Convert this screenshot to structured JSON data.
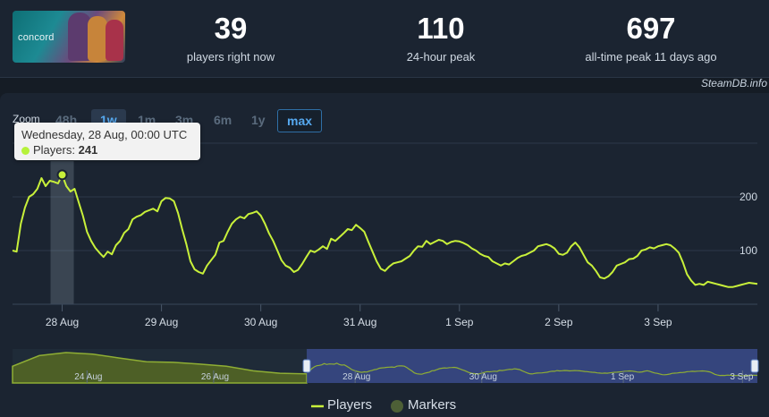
{
  "header": {
    "game_logo_text": "concord",
    "stats": [
      {
        "value": "39",
        "label": "players right now"
      },
      {
        "value": "110",
        "label": "24-hour peak"
      },
      {
        "value": "697",
        "label": "all-time peak 11 days ago"
      }
    ],
    "credit": "SteamDB.info"
  },
  "zoom": {
    "label": "Zoom",
    "buttons": [
      "48h",
      "1w",
      "1m",
      "3m",
      "6m",
      "1y",
      "max"
    ],
    "active": "1w"
  },
  "tooltip": {
    "date": "Wednesday, 28 Aug, 00:00 UTC",
    "series_label": "Players:",
    "value": "241"
  },
  "chart_data": {
    "type": "line",
    "x_unit": "hours since 27 Aug 12:00 UTC",
    "xlim": [
      0,
      180
    ],
    "ylim": [
      0,
      300
    ],
    "yticks": [
      100,
      200
    ],
    "xticks": [
      {
        "label": "28 Aug",
        "x": 12
      },
      {
        "label": "29 Aug",
        "x": 36
      },
      {
        "label": "30 Aug",
        "x": 60
      },
      {
        "label": "31 Aug",
        "x": 84
      },
      {
        "label": "1 Sep",
        "x": 108
      },
      {
        "label": "2 Sep",
        "x": 132
      },
      {
        "label": "3 Sep",
        "x": 156
      }
    ],
    "grid": true,
    "legend": "bottom-center",
    "series": [
      {
        "name": "Players",
        "color": "#c8f03a",
        "points": [
          [
            0,
            100
          ],
          [
            1,
            98
          ],
          [
            2,
            150
          ],
          [
            3,
            180
          ],
          [
            4,
            200
          ],
          [
            5,
            205
          ],
          [
            6,
            215
          ],
          [
            7,
            235
          ],
          [
            8,
            220
          ],
          [
            9,
            230
          ],
          [
            10,
            228
          ],
          [
            11,
            225
          ],
          [
            12,
            241
          ],
          [
            13,
            220
          ],
          [
            14,
            210
          ],
          [
            15,
            215
          ],
          [
            16,
            190
          ],
          [
            17,
            165
          ],
          [
            18,
            135
          ],
          [
            19,
            118
          ],
          [
            20,
            105
          ],
          [
            21,
            96
          ],
          [
            22,
            88
          ],
          [
            23,
            98
          ],
          [
            24,
            93
          ],
          [
            25,
            110
          ],
          [
            26,
            118
          ],
          [
            27,
            133
          ],
          [
            28,
            140
          ],
          [
            29,
            158
          ],
          [
            30,
            163
          ],
          [
            31,
            166
          ],
          [
            32,
            172
          ],
          [
            33,
            175
          ],
          [
            34,
            178
          ],
          [
            35,
            173
          ],
          [
            36,
            192
          ],
          [
            37,
            198
          ],
          [
            38,
            197
          ],
          [
            39,
            192
          ],
          [
            40,
            170
          ],
          [
            41,
            140
          ],
          [
            42,
            112
          ],
          [
            43,
            80
          ],
          [
            44,
            65
          ],
          [
            45,
            60
          ],
          [
            46,
            57
          ],
          [
            47,
            72
          ],
          [
            48,
            82
          ],
          [
            49,
            92
          ],
          [
            50,
            115
          ],
          [
            51,
            118
          ],
          [
            52,
            135
          ],
          [
            53,
            150
          ],
          [
            54,
            158
          ],
          [
            55,
            163
          ],
          [
            56,
            160
          ],
          [
            57,
            168
          ],
          [
            58,
            170
          ],
          [
            59,
            173
          ],
          [
            60,
            165
          ],
          [
            61,
            150
          ],
          [
            62,
            132
          ],
          [
            63,
            118
          ],
          [
            64,
            100
          ],
          [
            65,
            82
          ],
          [
            66,
            72
          ],
          [
            67,
            68
          ],
          [
            68,
            60
          ],
          [
            69,
            64
          ],
          [
            70,
            75
          ],
          [
            71,
            88
          ],
          [
            72,
            100
          ],
          [
            73,
            97
          ],
          [
            74,
            102
          ],
          [
            75,
            108
          ],
          [
            76,
            103
          ],
          [
            77,
            122
          ],
          [
            78,
            118
          ],
          [
            79,
            125
          ],
          [
            80,
            132
          ],
          [
            81,
            140
          ],
          [
            82,
            138
          ],
          [
            83,
            148
          ],
          [
            84,
            142
          ],
          [
            85,
            135
          ],
          [
            86,
            116
          ],
          [
            87,
            98
          ],
          [
            88,
            80
          ],
          [
            89,
            66
          ],
          [
            90,
            62
          ],
          [
            91,
            70
          ],
          [
            92,
            76
          ],
          [
            93,
            78
          ],
          [
            94,
            80
          ],
          [
            95,
            85
          ],
          [
            96,
            90
          ],
          [
            97,
            100
          ],
          [
            98,
            108
          ],
          [
            99,
            107
          ],
          [
            100,
            118
          ],
          [
            101,
            112
          ],
          [
            102,
            116
          ],
          [
            103,
            120
          ],
          [
            104,
            118
          ],
          [
            105,
            112
          ],
          [
            106,
            116
          ],
          [
            107,
            118
          ],
          [
            108,
            117
          ],
          [
            109,
            114
          ],
          [
            110,
            110
          ],
          [
            111,
            104
          ],
          [
            112,
            100
          ],
          [
            113,
            94
          ],
          [
            114,
            90
          ],
          [
            115,
            88
          ],
          [
            116,
            80
          ],
          [
            117,
            76
          ],
          [
            118,
            72
          ],
          [
            119,
            76
          ],
          [
            120,
            74
          ],
          [
            121,
            80
          ],
          [
            122,
            86
          ],
          [
            123,
            90
          ],
          [
            124,
            92
          ],
          [
            125,
            96
          ],
          [
            126,
            100
          ],
          [
            127,
            108
          ],
          [
            128,
            110
          ],
          [
            129,
            112
          ],
          [
            130,
            109
          ],
          [
            131,
            104
          ],
          [
            132,
            94
          ],
          [
            133,
            92
          ],
          [
            134,
            96
          ],
          [
            135,
            108
          ],
          [
            136,
            115
          ],
          [
            137,
            106
          ],
          [
            138,
            92
          ],
          [
            139,
            78
          ],
          [
            140,
            72
          ],
          [
            141,
            62
          ],
          [
            142,
            50
          ],
          [
            143,
            48
          ],
          [
            144,
            52
          ],
          [
            145,
            60
          ],
          [
            146,
            72
          ],
          [
            147,
            75
          ],
          [
            148,
            78
          ],
          [
            149,
            84
          ],
          [
            150,
            85
          ],
          [
            151,
            90
          ],
          [
            152,
            100
          ],
          [
            153,
            102
          ],
          [
            154,
            106
          ],
          [
            155,
            104
          ],
          [
            156,
            108
          ],
          [
            157,
            110
          ],
          [
            158,
            112
          ],
          [
            159,
            110
          ],
          [
            160,
            104
          ],
          [
            161,
            96
          ],
          [
            162,
            78
          ],
          [
            163,
            56
          ],
          [
            164,
            44
          ],
          [
            165,
            36
          ],
          [
            166,
            38
          ],
          [
            167,
            36
          ],
          [
            168,
            42
          ],
          [
            169,
            40
          ],
          [
            170,
            38
          ],
          [
            171,
            36
          ],
          [
            172,
            34
          ],
          [
            173,
            32
          ],
          [
            174,
            32
          ],
          [
            175,
            34
          ],
          [
            176,
            36
          ],
          [
            177,
            38
          ],
          [
            178,
            40
          ],
          [
            179,
            39
          ],
          [
            180,
            38
          ]
        ]
      }
    ],
    "highlight": {
      "x": 12,
      "y": 241
    },
    "navigator": {
      "ticks": [
        "24 Aug",
        "26 Aug",
        "28 Aug",
        "30 Aug",
        "1 Sep",
        "3 Sep"
      ],
      "history": [
        [
          0,
          0.55
        ],
        [
          1,
          0.9
        ],
        [
          2,
          1.0
        ],
        [
          3,
          0.95
        ],
        [
          4,
          0.82
        ],
        [
          5,
          0.7
        ],
        [
          6,
          0.68
        ],
        [
          7,
          0.62
        ],
        [
          8,
          0.55
        ],
        [
          9,
          0.4
        ],
        [
          10,
          0.32
        ],
        [
          11,
          0.3
        ]
      ],
      "selection_start": 0.395
    },
    "legend_items": [
      {
        "name": "Players",
        "type": "line",
        "color": "#c8f03a"
      },
      {
        "name": "Markers",
        "type": "circle",
        "color": "#4d5f36"
      }
    ]
  }
}
